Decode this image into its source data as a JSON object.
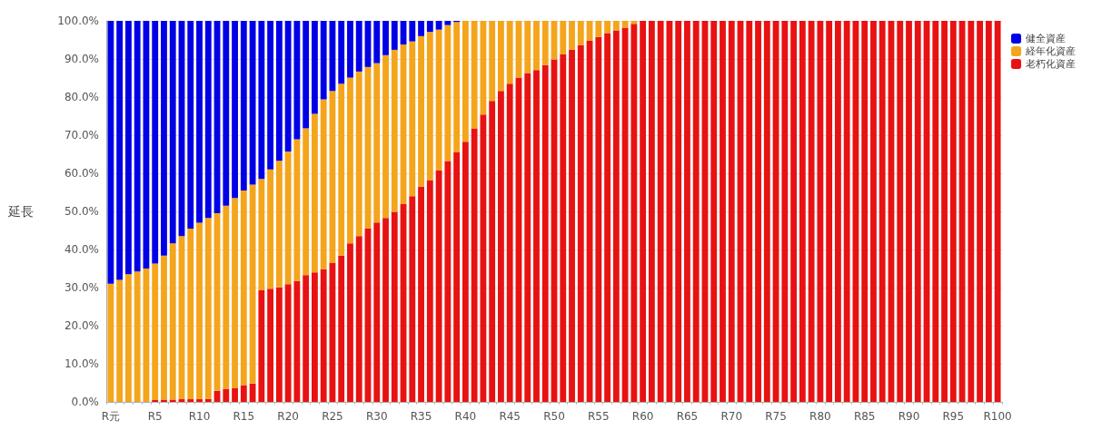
{
  "chart_data": {
    "type": "bar",
    "ylabel": "延長",
    "stacked": true,
    "grid": "y",
    "legend": "top right",
    "categories": [
      "R元",
      null,
      null,
      null,
      null,
      "R5",
      null,
      null,
      null,
      null,
      "R10",
      null,
      null,
      null,
      null,
      "R15",
      null,
      null,
      null,
      null,
      "R20",
      null,
      null,
      null,
      null,
      "R25",
      null,
      null,
      null,
      null,
      "R30",
      null,
      null,
      null,
      null,
      "R35",
      null,
      null,
      null,
      null,
      "R40",
      null,
      null,
      null,
      null,
      "R45",
      null,
      null,
      null,
      null,
      "R50",
      null,
      null,
      null,
      null,
      "R55",
      null,
      null,
      null,
      null,
      "R60",
      null,
      null,
      null,
      null,
      "R65",
      null,
      null,
      null,
      null,
      "R70",
      null,
      null,
      null,
      null,
      "R75",
      null,
      null,
      null,
      null,
      "R80",
      null,
      null,
      null,
      null,
      "R85",
      null,
      null,
      null,
      null,
      "R90",
      null,
      null,
      null,
      null,
      "R95",
      null,
      null,
      null,
      null,
      "R100"
    ],
    "ylim": [
      0,
      100
    ],
    "yticks": [
      {
        "value": 0,
        "label": "0.0%"
      },
      {
        "value": 10,
        "label": "10.0%"
      },
      {
        "value": 20,
        "label": "20.0%"
      },
      {
        "value": 30,
        "label": "30.0%"
      },
      {
        "value": 40,
        "label": "40.0%"
      },
      {
        "value": 50,
        "label": "50.0%"
      },
      {
        "value": 60,
        "label": "60.0%"
      },
      {
        "value": 70,
        "label": "70.0%"
      },
      {
        "value": 80,
        "label": "80.0%"
      },
      {
        "value": 90,
        "label": "90.0%"
      },
      {
        "value": 100,
        "label": "100.0%"
      }
    ],
    "series": [
      {
        "name": "老朽化資産",
        "color": "#e81212",
        "values": [
          0,
          0,
          0,
          0,
          0,
          0.5,
          0.6,
          0.6,
          0.7,
          0.7,
          0.7,
          0.8,
          2.9,
          3.4,
          3.6,
          4.4,
          4.8,
          29.3,
          29.7,
          30.1,
          30.9,
          31.7,
          33.3,
          34,
          34.8,
          36.4,
          38.4,
          41.6,
          43.5,
          45.5,
          47.1,
          48.3,
          49.9,
          51.9,
          54,
          56.5,
          58.2,
          60.7,
          63.2,
          65.6,
          68.3,
          71.8,
          75.4,
          79,
          81.6,
          83.5,
          85.1,
          86.3,
          87.1,
          88.4,
          89.9,
          91.2,
          92.4,
          93.6,
          94.8,
          95.8,
          96.8,
          97.5,
          98.2,
          99.2,
          100,
          100,
          100,
          100,
          100,
          100,
          100,
          100,
          100,
          100,
          100,
          100,
          100,
          100,
          100,
          100,
          100,
          100,
          100,
          100,
          100,
          100,
          100,
          100,
          100,
          100,
          100,
          100,
          100,
          100,
          100,
          100,
          100,
          100,
          100,
          100,
          100,
          100,
          100,
          100,
          100
        ]
      },
      {
        "name": "経年化資産",
        "color": "#f4a51c",
        "values": [
          31,
          32,
          33.5,
          34.2,
          35,
          35.8,
          37.8,
          41,
          42.8,
          44.8,
          46.3,
          47.5,
          46.6,
          48.1,
          49.9,
          51.1,
          52.2,
          29.2,
          31.3,
          33.2,
          34.8,
          37.2,
          38.5,
          41.6,
          44.6,
          45.2,
          45.1,
          43.5,
          43.2,
          42.4,
          41.8,
          42.7,
          42.5,
          41.9,
          40.6,
          39.5,
          38.9,
          37,
          35.7,
          34.1,
          31.7,
          28.2,
          24.6,
          21,
          18.4,
          16.5,
          14.9,
          13.7,
          12.9,
          11.6,
          10.1,
          8.8,
          7.6,
          6.4,
          5.2,
          4.2,
          3.2,
          2.5,
          1.8,
          0.8,
          0,
          0,
          0,
          0,
          0,
          0,
          0,
          0,
          0,
          0,
          0,
          0,
          0,
          0,
          0,
          0,
          0,
          0,
          0,
          0,
          0,
          0,
          0,
          0,
          0,
          0,
          0,
          0,
          0,
          0,
          0,
          0,
          0,
          0,
          0,
          0,
          0,
          0,
          0,
          0,
          0
        ]
      },
      {
        "name": "健全資産",
        "color": "#0000e6",
        "values": [
          69,
          68,
          66.5,
          65.8,
          65,
          63.7,
          61.6,
          58.4,
          56.5,
          54.5,
          53,
          51.7,
          50.5,
          48.5,
          46.5,
          44.5,
          43,
          41.5,
          39,
          36.7,
          34.3,
          31.1,
          28.2,
          24.4,
          20.6,
          18.4,
          16.5,
          14.9,
          13.3,
          12.1,
          11.1,
          9,
          7.6,
          6.2,
          5.4,
          4,
          2.9,
          2.3,
          1.1,
          0.3,
          0,
          0,
          0,
          0,
          0,
          0,
          0,
          0,
          0,
          0,
          0,
          0,
          0,
          0,
          0,
          0,
          0,
          0,
          0,
          0,
          0,
          0,
          0,
          0,
          0,
          0,
          0,
          0,
          0,
          0,
          0,
          0,
          0,
          0,
          0,
          0,
          0,
          0,
          0,
          0,
          0,
          0,
          0,
          0,
          0,
          0,
          0,
          0,
          0,
          0,
          0,
          0,
          0,
          0,
          0,
          0,
          0,
          0,
          0,
          0,
          0
        ]
      }
    ]
  }
}
